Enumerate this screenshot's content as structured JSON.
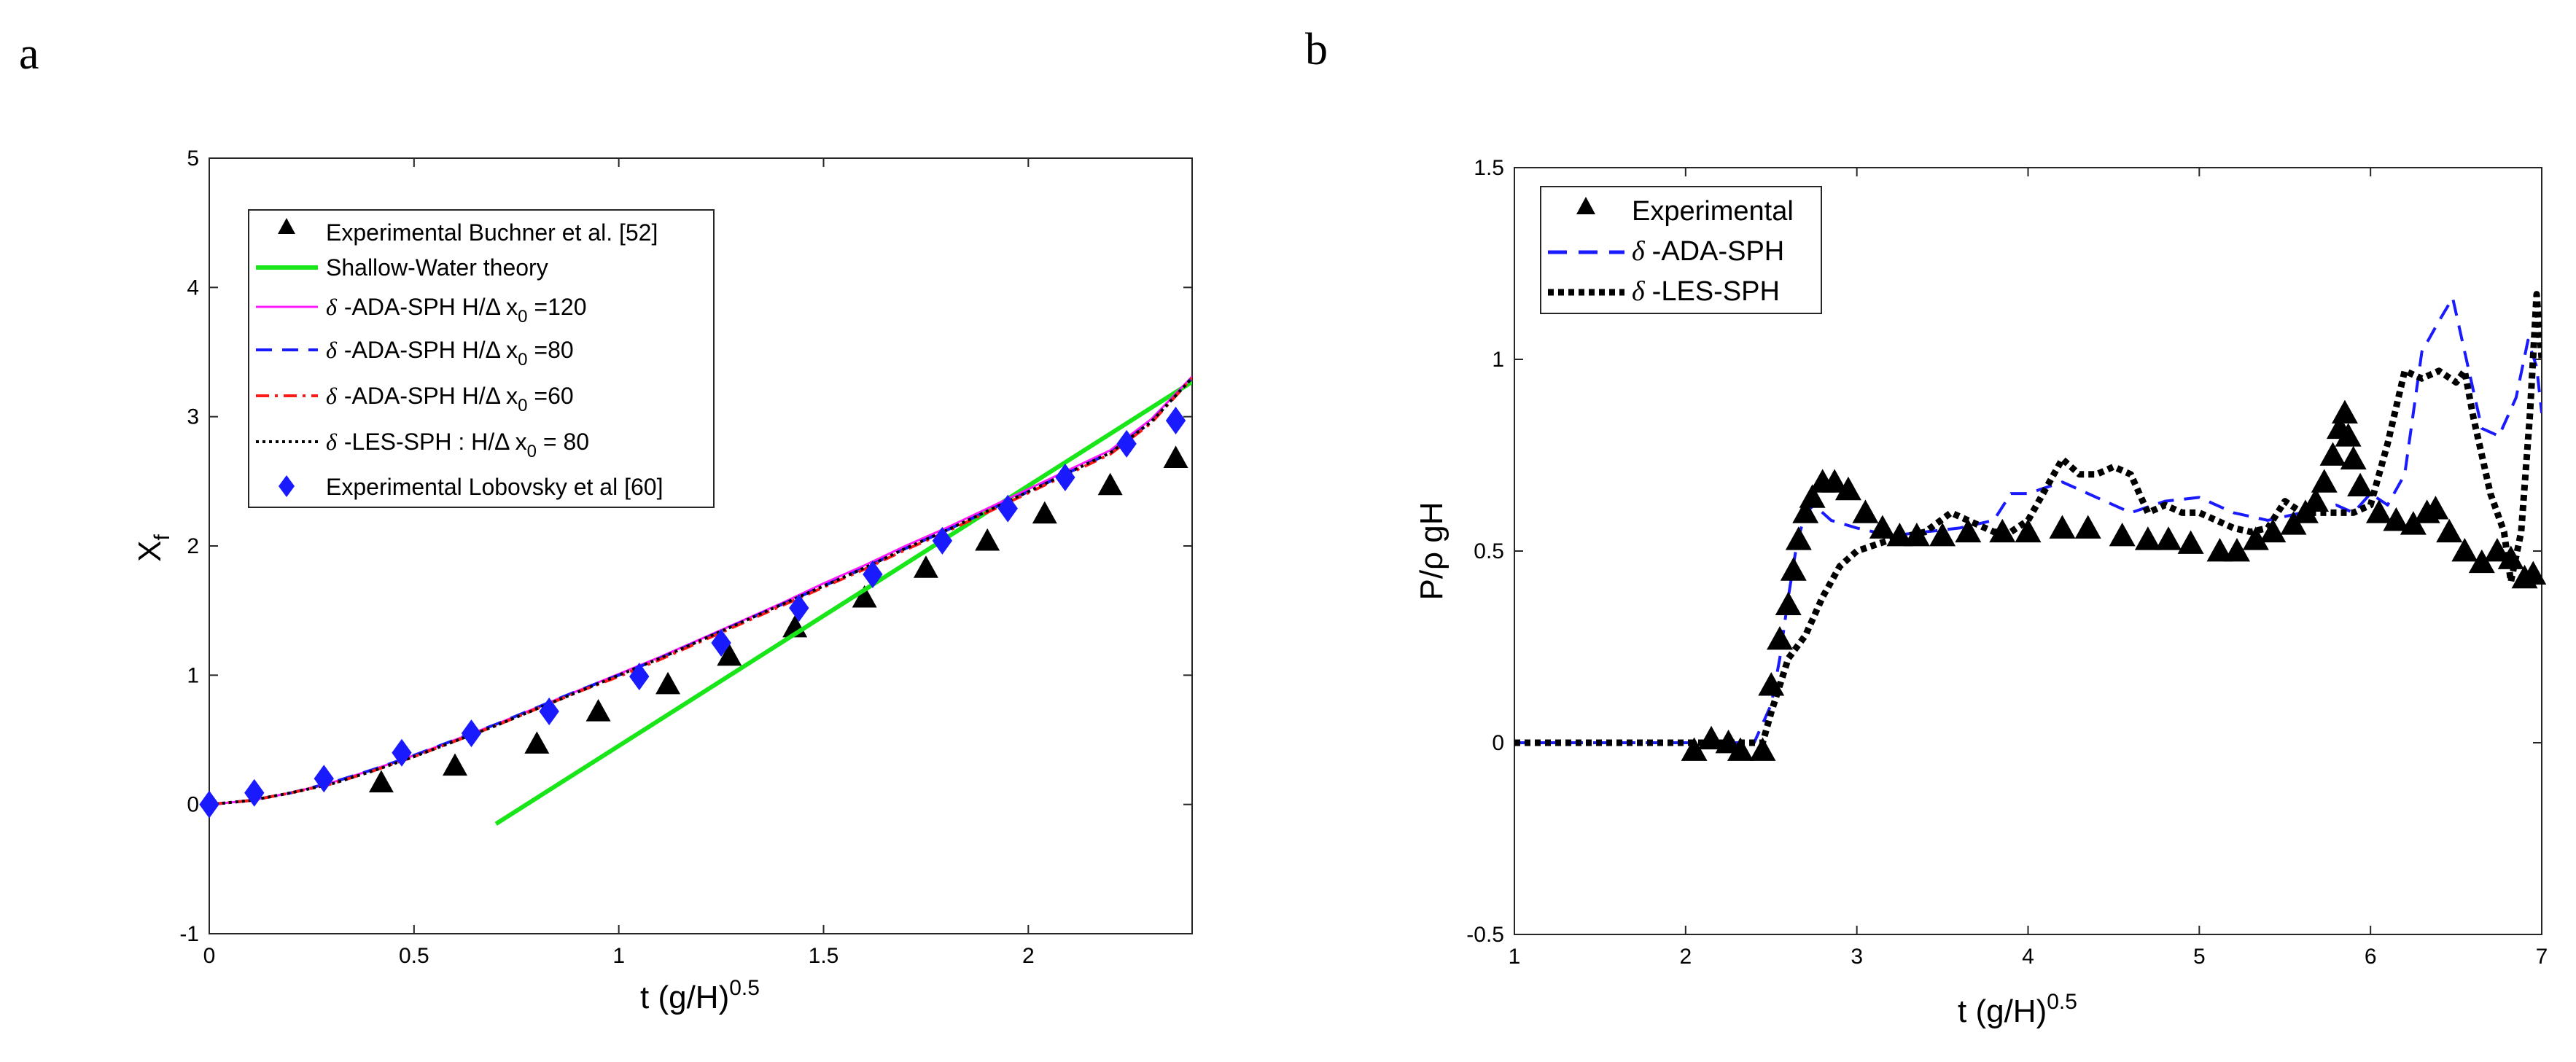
{
  "panels": {
    "a": {
      "letter": "a"
    },
    "b": {
      "letter": "b"
    }
  },
  "colors": {
    "buchner": "#000000",
    "shallow": "#19e619",
    "ada120": "#ff19ff",
    "ada80": "#1a1aff",
    "ada60": "#ff1a1a",
    "les80": "#000000",
    "lobovsky": "#1a1aff"
  },
  "chart_data": [
    {
      "type": "line",
      "panel": "a",
      "xlabel": "t (g/H)^0.5",
      "ylabel": "X_f",
      "xlim": [
        0,
        2.4
      ],
      "ylim": [
        -1,
        5
      ],
      "xticks": [
        0,
        0.5,
        1,
        1.5,
        2
      ],
      "yticks": [
        -1,
        0,
        1,
        2,
        3,
        4,
        5
      ],
      "xtick_labels": [
        "0",
        "0.5",
        "1",
        "1.5",
        "2"
      ],
      "ytick_labels": [
        "-1",
        "0",
        "1",
        "2",
        "3",
        "4",
        "5"
      ],
      "legend_position": "top-left",
      "series": [
        {
          "name": "Experimental Buchner et al. [52]",
          "kind": "triangle",
          "color_key": "buchner",
          "x": [
            0.42,
            0.6,
            0.8,
            0.95,
            1.12,
            1.27,
            1.43,
            1.6,
            1.75,
            1.9,
            2.04,
            2.2,
            2.36
          ],
          "y": [
            0.17,
            0.3,
            0.47,
            0.72,
            0.93,
            1.15,
            1.37,
            1.6,
            1.83,
            2.04,
            2.25,
            2.47,
            2.68
          ]
        },
        {
          "name": "Shallow-Water theory",
          "kind": "solid",
          "color_key": "shallow",
          "x": [
            0.7,
            2.4
          ],
          "y": [
            -0.15,
            3.27
          ]
        },
        {
          "name": "-ADA-SPH H/Δ x0 =120",
          "prefix": "δ",
          "kind": "solid-thin",
          "color_key": "ada120",
          "x": [
            0,
            0.1,
            0.2,
            0.3,
            0.4,
            0.5,
            0.6,
            0.7,
            0.8,
            0.9,
            1.0,
            1.1,
            1.2,
            1.3,
            1.4,
            1.5,
            1.6,
            1.7,
            1.8,
            1.9,
            2.0,
            2.1,
            2.2,
            2.3,
            2.4
          ],
          "y": [
            0,
            0.03,
            0.09,
            0.17,
            0.27,
            0.38,
            0.5,
            0.62,
            0.75,
            0.88,
            1.01,
            1.14,
            1.28,
            1.42,
            1.56,
            1.71,
            1.85,
            2.0,
            2.14,
            2.29,
            2.44,
            2.59,
            2.74,
            2.98,
            3.31
          ]
        },
        {
          "name": "-ADA-SPH H/Δ x0 =80",
          "prefix": "δ",
          "kind": "dashed",
          "color_key": "ada80",
          "x": [
            0,
            0.1,
            0.2,
            0.3,
            0.4,
            0.5,
            0.6,
            0.7,
            0.8,
            0.9,
            1.0,
            1.1,
            1.2,
            1.3,
            1.4,
            1.5,
            1.6,
            1.7,
            1.8,
            1.9,
            2.0,
            2.1,
            2.2,
            2.3,
            2.4
          ],
          "y": [
            0,
            0.03,
            0.09,
            0.17,
            0.27,
            0.38,
            0.5,
            0.62,
            0.75,
            0.88,
            1.0,
            1.13,
            1.27,
            1.41,
            1.55,
            1.69,
            1.83,
            1.98,
            2.12,
            2.27,
            2.42,
            2.57,
            2.72,
            2.96,
            3.3
          ]
        },
        {
          "name": "-ADA-SPH  H/Δ x0 =60",
          "prefix": "δ",
          "kind": "dashdot",
          "color_key": "ada60",
          "x": [
            0,
            0.1,
            0.2,
            0.3,
            0.4,
            0.5,
            0.6,
            0.7,
            0.8,
            0.9,
            1.0,
            1.1,
            1.2,
            1.3,
            1.4,
            1.5,
            1.6,
            1.7,
            1.8,
            1.9,
            2.0,
            2.1,
            2.2,
            2.3,
            2.4
          ],
          "y": [
            0,
            0.03,
            0.09,
            0.16,
            0.26,
            0.37,
            0.49,
            0.61,
            0.74,
            0.87,
            0.99,
            1.12,
            1.26,
            1.4,
            1.54,
            1.68,
            1.82,
            1.97,
            2.11,
            2.26,
            2.41,
            2.56,
            2.71,
            2.95,
            3.3
          ]
        },
        {
          "name": "-LES-SPH : H/Δ x0 = 80",
          "prefix": "δ",
          "kind": "dotted",
          "color_key": "les80",
          "x": [
            0,
            0.1,
            0.2,
            0.3,
            0.4,
            0.5,
            0.6,
            0.7,
            0.8,
            0.9,
            1.0,
            1.1,
            1.2,
            1.3,
            1.4,
            1.5,
            1.6,
            1.7,
            1.8,
            1.9,
            2.0,
            2.1,
            2.2,
            2.3,
            2.4
          ],
          "y": [
            0,
            0.03,
            0.09,
            0.16,
            0.26,
            0.37,
            0.49,
            0.61,
            0.74,
            0.87,
            1.0,
            1.13,
            1.27,
            1.41,
            1.55,
            1.69,
            1.83,
            1.98,
            2.12,
            2.27,
            2.42,
            2.57,
            2.72,
            2.96,
            3.3
          ]
        },
        {
          "name": "Experimental Lobovsky et al [60]",
          "kind": "diamond",
          "color_key": "lobovsky",
          "x": [
            0,
            0.11,
            0.28,
            0.47,
            0.64,
            0.83,
            1.05,
            1.25,
            1.44,
            1.62,
            1.79,
            1.95,
            2.09,
            2.24,
            2.36
          ],
          "y": [
            0,
            0.09,
            0.2,
            0.4,
            0.55,
            0.72,
            0.99,
            1.25,
            1.52,
            1.78,
            2.04,
            2.29,
            2.53,
            2.79,
            2.97
          ]
        }
      ]
    },
    {
      "type": "line",
      "panel": "b",
      "xlabel": "t (g/H)^0.5",
      "ylabel": "P/ρ gH",
      "xlim": [
        1,
        7
      ],
      "ylim": [
        -0.5,
        1.5
      ],
      "xticks": [
        1,
        2,
        3,
        4,
        5,
        6,
        7
      ],
      "yticks": [
        -0.5,
        0,
        0.5,
        1,
        1.5
      ],
      "xtick_labels": [
        "1",
        "2",
        "3",
        "4",
        "5",
        "6",
        "7"
      ],
      "ytick_labels": [
        "-0.5",
        "0",
        "0.5",
        "1",
        "1.5"
      ],
      "legend_position": "top-left",
      "series": [
        {
          "name": "Experimental",
          "kind": "triangle",
          "color_key": "buchner",
          "x": [
            2.05,
            2.15,
            2.25,
            2.32,
            2.45,
            2.5,
            2.55,
            2.6,
            2.63,
            2.66,
            2.7,
            2.74,
            2.8,
            2.87,
            2.95,
            3.05,
            3.15,
            3.25,
            3.35,
            3.5,
            3.65,
            3.85,
            4.0,
            4.2,
            4.35,
            4.55,
            4.7,
            4.82,
            4.95,
            5.12,
            5.22,
            5.33,
            5.43,
            5.55,
            5.62,
            5.68,
            5.73,
            5.78,
            5.82,
            5.85,
            5.87,
            5.9,
            5.94,
            6.05,
            6.15,
            6.25,
            6.33,
            6.38,
            6.46,
            6.55,
            6.65,
            6.74,
            6.82,
            6.9,
            6.95
          ],
          "y": [
            -0.02,
            0.01,
            0.0,
            -0.02,
            -0.02,
            0.15,
            0.27,
            0.36,
            0.45,
            0.53,
            0.6,
            0.64,
            0.68,
            0.68,
            0.66,
            0.6,
            0.56,
            0.54,
            0.54,
            0.54,
            0.55,
            0.55,
            0.55,
            0.56,
            0.56,
            0.54,
            0.53,
            0.53,
            0.52,
            0.5,
            0.5,
            0.53,
            0.55,
            0.57,
            0.6,
            0.63,
            0.68,
            0.75,
            0.82,
            0.86,
            0.8,
            0.74,
            0.67,
            0.6,
            0.58,
            0.57,
            0.6,
            0.61,
            0.55,
            0.5,
            0.47,
            0.5,
            0.48,
            0.43,
            0.44
          ]
        },
        {
          "name": "-ADA-SPH",
          "prefix": "δ",
          "kind": "dashed",
          "color_key": "ada80",
          "x": [
            1,
            2.2,
            2.4,
            2.5,
            2.55,
            2.6,
            2.65,
            2.7,
            2.75,
            2.85,
            3.0,
            3.2,
            3.4,
            3.6,
            3.8,
            3.9,
            4.0,
            4.2,
            4.4,
            4.6,
            4.8,
            5.0,
            5.2,
            5.4,
            5.6,
            5.8,
            5.9,
            6.0,
            6.1,
            6.2,
            6.3,
            6.4,
            6.48,
            6.55,
            6.65,
            6.75,
            6.85,
            6.92,
            6.97,
            7.0
          ],
          "y": [
            0,
            0,
            0,
            0.1,
            0.22,
            0.38,
            0.52,
            0.6,
            0.62,
            0.58,
            0.56,
            0.54,
            0.55,
            0.56,
            0.58,
            0.65,
            0.65,
            0.68,
            0.64,
            0.6,
            0.63,
            0.64,
            0.6,
            0.58,
            0.6,
            0.62,
            0.6,
            0.65,
            0.62,
            0.7,
            1.02,
            1.1,
            1.16,
            1.02,
            0.82,
            0.8,
            0.9,
            1.05,
            0.98,
            0.86
          ]
        },
        {
          "name": "-LES-SPH",
          "prefix": "δ",
          "kind": "dotted-thick",
          "color_key": "les80",
          "x": [
            1,
            2.3,
            2.45,
            2.5,
            2.55,
            2.6,
            2.7,
            2.8,
            2.9,
            3.0,
            3.2,
            3.4,
            3.55,
            3.7,
            3.8,
            3.9,
            4.0,
            4.1,
            4.2,
            4.3,
            4.4,
            4.5,
            4.6,
            4.7,
            4.8,
            4.9,
            5.0,
            5.1,
            5.2,
            5.3,
            5.4,
            5.5,
            5.6,
            5.7,
            5.8,
            5.9,
            6.0,
            6.1,
            6.2,
            6.3,
            6.4,
            6.5,
            6.55,
            6.6,
            6.7,
            6.78,
            6.82,
            6.88,
            6.93,
            6.97,
            7.0
          ],
          "y": [
            0,
            0,
            0,
            0.08,
            0.15,
            0.22,
            0.28,
            0.38,
            0.46,
            0.5,
            0.53,
            0.55,
            0.6,
            0.57,
            0.55,
            0.55,
            0.58,
            0.66,
            0.74,
            0.7,
            0.7,
            0.72,
            0.7,
            0.6,
            0.62,
            0.6,
            0.6,
            0.58,
            0.56,
            0.55,
            0.56,
            0.63,
            0.6,
            0.6,
            0.6,
            0.6,
            0.62,
            0.78,
            0.97,
            0.95,
            0.97,
            0.94,
            0.97,
            0.85,
            0.65,
            0.55,
            0.42,
            0.55,
            0.85,
            1.17,
            1.0
          ]
        }
      ]
    }
  ]
}
